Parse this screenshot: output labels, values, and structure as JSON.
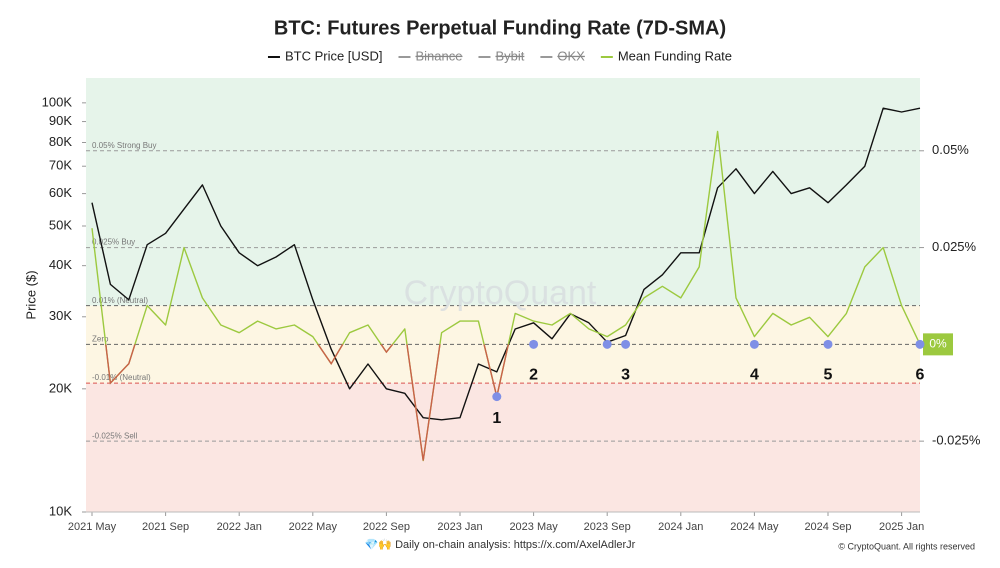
{
  "chart_data": {
    "type": "line",
    "title": "BTC: Futures Perpetual Funding Rate (7D-SMA)",
    "watermark": "CryptoQuant",
    "y_label": "Price ($)",
    "x": [
      "2021-05",
      "2021-06",
      "2021-07",
      "2021-08",
      "2021-09",
      "2021-10",
      "2021-11",
      "2021-12",
      "2022-01",
      "2022-02",
      "2022-03",
      "2022-04",
      "2022-05",
      "2022-06",
      "2022-07",
      "2022-08",
      "2022-09",
      "2022-10",
      "2022-11",
      "2022-12",
      "2023-01",
      "2023-02",
      "2023-03",
      "2023-04",
      "2023-05",
      "2023-06",
      "2023-07",
      "2023-08",
      "2023-09",
      "2023-10",
      "2023-11",
      "2023-12",
      "2024-01",
      "2024-02",
      "2024-03",
      "2024-04",
      "2024-05",
      "2024-06",
      "2024-07",
      "2024-08",
      "2024-09",
      "2024-10",
      "2024-11",
      "2024-12",
      "2025-01",
      "2025-02"
    ],
    "xlim": [
      "2021-05",
      "2025-02"
    ],
    "xticks": [
      {
        "value": "2021-05",
        "label": "2021 May"
      },
      {
        "value": "2021-09",
        "label": "2021 Sep"
      },
      {
        "value": "2022-01",
        "label": "2022 Jan"
      },
      {
        "value": "2022-05",
        "label": "2022 May"
      },
      {
        "value": "2022-09",
        "label": "2022 Sep"
      },
      {
        "value": "2023-01",
        "label": "2023 Jan"
      },
      {
        "value": "2023-05",
        "label": "2023 May"
      },
      {
        "value": "2023-09",
        "label": "2023 Sep"
      },
      {
        "value": "2024-01",
        "label": "2024 Jan"
      },
      {
        "value": "2024-05",
        "label": "2024 May"
      },
      {
        "value": "2024-09",
        "label": "2024 Sep"
      },
      {
        "value": "2025-01",
        "label": "2025 Jan"
      }
    ],
    "ylim": [
      10000,
      115000
    ],
    "log_y": true,
    "yticks": [
      {
        "value": 10000,
        "label": "10K"
      },
      {
        "value": 20000,
        "label": "20K"
      },
      {
        "value": 30000,
        "label": "30K"
      },
      {
        "value": 40000,
        "label": "40K"
      },
      {
        "value": 50000,
        "label": "50K"
      },
      {
        "value": 60000,
        "label": "60K"
      },
      {
        "value": 70000,
        "label": "70K"
      },
      {
        "value": 80000,
        "label": "80K"
      },
      {
        "value": 90000,
        "label": "90K"
      },
      {
        "value": 100000,
        "label": "100K"
      }
    ],
    "y2lim": [
      -0.0433,
      0.0688
    ],
    "y2ticks": [
      {
        "value": 0.05,
        "label": "0.05%"
      },
      {
        "value": 0.025,
        "label": "0.025%"
      },
      {
        "value": -0.025,
        "label": "-0.025%"
      }
    ],
    "series": [
      {
        "name": "BTC Price [USD]",
        "color": "#111111",
        "values": [
          57000,
          36000,
          33000,
          45000,
          48000,
          55000,
          63000,
          50000,
          43000,
          40000,
          42000,
          45000,
          33000,
          25000,
          20000,
          23000,
          20000,
          19500,
          17000,
          16800,
          17000,
          23000,
          22000,
          28000,
          29000,
          26500,
          30500,
          29000,
          26000,
          27000,
          35000,
          38000,
          43000,
          43000,
          62000,
          69000,
          60000,
          68000,
          60000,
          62000,
          57000,
          63000,
          70000,
          97000,
          95000,
          97000
        ]
      },
      {
        "name": "Mean Funding Rate",
        "color": "#9cc93f",
        "negative_color": "#c9614a",
        "axis": "y2",
        "end_label": "0%",
        "values": [
          0.03,
          -0.01,
          -0.005,
          0.01,
          0.005,
          0.025,
          0.012,
          0.005,
          0.003,
          0.006,
          0.004,
          0.005,
          0.002,
          -0.005,
          0.003,
          0.005,
          -0.002,
          0.004,
          -0.03,
          0.003,
          0.006,
          0.006,
          -0.0135,
          0.008,
          0.006,
          0.005,
          0.008,
          0.004,
          0.002,
          0.005,
          0.012,
          0.015,
          0.012,
          0.02,
          0.055,
          0.012,
          0.002,
          0.008,
          0.005,
          0.007,
          0.002,
          0.008,
          0.02,
          0.025,
          0.01,
          0
        ]
      }
    ],
    "hidden_series": [
      "Binance",
      "Bybit",
      "OKX"
    ],
    "reference_lines": [
      {
        "value": 0.05,
        "label": "0.05% Strong Buy",
        "color": "#9a9a9a"
      },
      {
        "value": 0.025,
        "label": "0.025% Buy",
        "color": "#9a9a9a"
      },
      {
        "value": 0.01,
        "label": "0.01% (Neutral)",
        "color": "#666666"
      },
      {
        "value": 0,
        "label": "Zero",
        "color": "#666666"
      },
      {
        "value": -0.01,
        "label": "-0.01% (Neutral)",
        "color": "#d9534f"
      },
      {
        "value": -0.025,
        "label": "-0.025% Sell",
        "color": "#9a9a9a"
      }
    ],
    "zones": [
      {
        "from": 0.01,
        "to": 0.0688,
        "color": "#e6f4ea"
      },
      {
        "from": -0.01,
        "to": 0.01,
        "color": "#fdf6e3"
      },
      {
        "from": -0.0433,
        "to": -0.01,
        "color": "#fbe6e2"
      }
    ],
    "markers_color": "#7f8fe6",
    "markers": [
      {
        "x": "2023-03",
        "value": -0.0135,
        "label": "1"
      },
      {
        "x": "2023-05",
        "value": 0,
        "label": "2"
      },
      {
        "x": "2023-09",
        "value": 0
      },
      {
        "x": "2023-10",
        "value": 0,
        "label": "3"
      },
      {
        "x": "2024-05",
        "value": 0,
        "label": "4"
      },
      {
        "x": "2024-09",
        "value": 0,
        "label": "5"
      },
      {
        "x": "2025-02",
        "value": 0,
        "label": "6"
      }
    ]
  },
  "footer": {
    "note": "💎🙌 Daily on-chain analysis: https://x.com/AxelAdlerJr",
    "copyright": "© CryptoQuant. All rights reserved"
  }
}
